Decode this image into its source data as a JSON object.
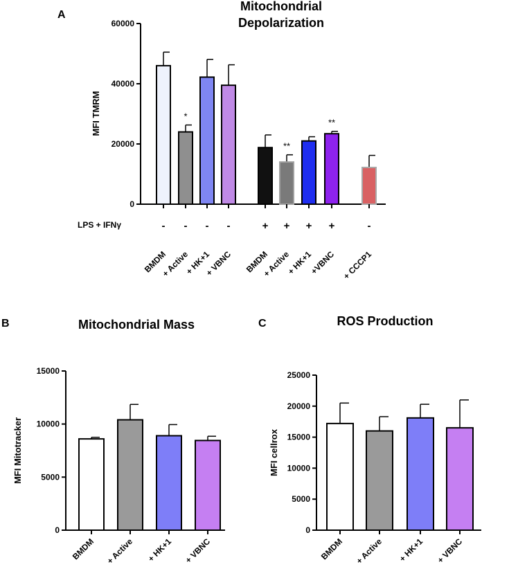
{
  "chart_data": [
    {
      "panel": "A",
      "type": "bar",
      "title": "Mitochondrial Depolarization",
      "title_lines": [
        "Mitochondrial",
        "Depolarization"
      ],
      "ylabel": "MFI TMRM",
      "ylim": [
        0,
        60000
      ],
      "yticks": [
        0,
        20000,
        40000,
        60000
      ],
      "condition_label": "LPS + IFNγ",
      "categories": [
        "BMDM",
        "+ Active",
        "+ HK+1",
        "+ VBNC",
        "BMDM",
        "+ Active",
        "+ HK+1",
        "+VBNC",
        "+ CCCP1"
      ],
      "values": [
        46000,
        24000,
        42200,
        39500,
        18800,
        14000,
        21000,
        23400,
        12200
      ],
      "errors": [
        4500,
        2300,
        5900,
        6800,
        4200,
        2400,
        1400,
        800,
        4000
      ],
      "significance": [
        "",
        "*",
        "",
        "",
        "",
        "**",
        "",
        "**",
        ""
      ],
      "condition_signs": [
        "-",
        "-",
        "-",
        "-",
        "+",
        "+",
        "+",
        "+",
        "-"
      ],
      "colors": [
        "#eef2fc",
        "#8f8f8f",
        "#7f86f2",
        "#c08ae6",
        "#111111",
        "#7a7a7a",
        "#1f2ef0",
        "#8e22ee",
        "#d96163"
      ],
      "edge_colors": [
        "#000000",
        "#000000",
        "#000000",
        "#000000",
        "#000000",
        "#a0a0a0",
        "#000000",
        "#000000",
        "#a9a9a9"
      ]
    },
    {
      "panel": "B",
      "type": "bar",
      "title": "Mitochondrial Mass",
      "ylabel": "MFI Mitotracker",
      "ylim": [
        0,
        15000
      ],
      "yticks": [
        0,
        5000,
        10000,
        15000
      ],
      "categories": [
        "BMDM",
        "+ Active",
        "+ HK+1",
        "+ VBNC"
      ],
      "values": [
        8600,
        10400,
        8900,
        8450
      ],
      "errors": [
        150,
        1450,
        1050,
        400
      ],
      "colors": [
        "#ffffff",
        "#9a9a9a",
        "#7e7ef8",
        "#c57ff2"
      ]
    },
    {
      "panel": "C",
      "type": "bar",
      "title": "ROS Production",
      "ylabel": "MFI cellrox",
      "ylim": [
        0,
        25000
      ],
      "yticks": [
        0,
        5000,
        10000,
        15000,
        20000,
        25000
      ],
      "categories": [
        "BMDM",
        "+ Active",
        "+ HK+1",
        "+ VBNC"
      ],
      "values": [
        17200,
        16000,
        18100,
        16500
      ],
      "errors": [
        3300,
        2300,
        2200,
        4500
      ],
      "colors": [
        "#ffffff",
        "#9a9a9a",
        "#7e7ef8",
        "#c57ff2"
      ]
    }
  ]
}
